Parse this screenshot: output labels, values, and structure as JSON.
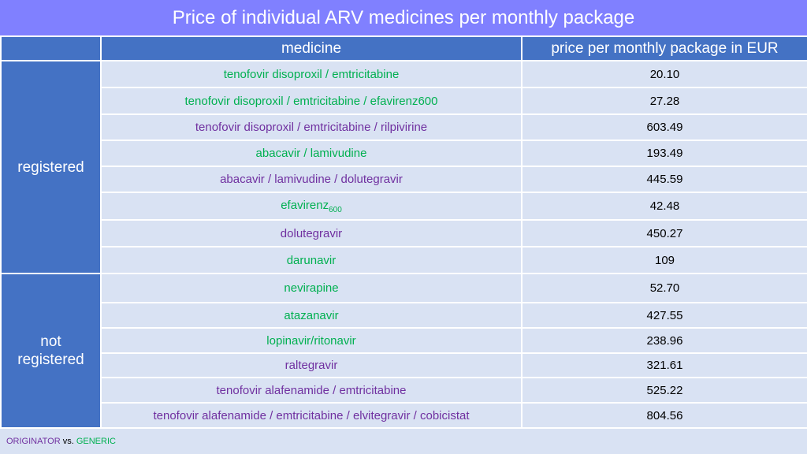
{
  "title": "Price of individual ARV medicines per monthly package",
  "columns": {
    "group": "",
    "medicine": "medicine",
    "price": "price per monthly package in EUR"
  },
  "groups": [
    {
      "label": "registered",
      "rows": [
        {
          "medicine": "tenofovir disoproxil / emtricitabine",
          "type": "generic",
          "price": "20.10"
        },
        {
          "medicine": "tenofovir disoproxil / emtricitabine / efavirenz600",
          "type": "generic",
          "price": "27.28"
        },
        {
          "medicine": "tenofovir disoproxil / emtricitabine / rilpivirine",
          "type": "originator",
          "price": "603.49"
        },
        {
          "medicine": "abacavir / lamivudine",
          "type": "generic",
          "price": "193.49"
        },
        {
          "medicine": "abacavir / lamivudine / dolutegravir",
          "type": "originator",
          "price": "445.59"
        },
        {
          "medicine": "efavirenz",
          "subscript": "600",
          "type": "generic",
          "price": "42.48"
        },
        {
          "medicine": "dolutegravir",
          "type": "originator",
          "price": "450.27"
        },
        {
          "medicine": "darunavir",
          "type": "generic",
          "price": "109"
        }
      ]
    },
    {
      "label": "not registered",
      "rows": [
        {
          "medicine": "nevirapine",
          "type": "generic",
          "price": "52.70"
        },
        {
          "medicine": "atazanavir",
          "type": "generic",
          "price": "427.55"
        },
        {
          "medicine": "lopinavir/ritonavir",
          "type": "generic",
          "price": "238.96"
        },
        {
          "medicine": "raltegravir",
          "type": "originator",
          "price": "321.61"
        },
        {
          "medicine": "tenofovir alafenamide /  emtricitabine",
          "type": "originator",
          "price": "525.22"
        },
        {
          "medicine": "tenofovir alafenamide /  emtricitabine / elvitegravir / cobicistat",
          "type": "originator",
          "price": "804.56"
        }
      ]
    }
  ],
  "legend": {
    "originator": "ORIGINATOR",
    "vs": "vs.",
    "generic": "GENERIC"
  },
  "colors": {
    "originator": "#7030a0",
    "generic": "#00b050",
    "header": "#4472c4",
    "title_bar": "#8080ff",
    "background": "#d9e2f3"
  }
}
